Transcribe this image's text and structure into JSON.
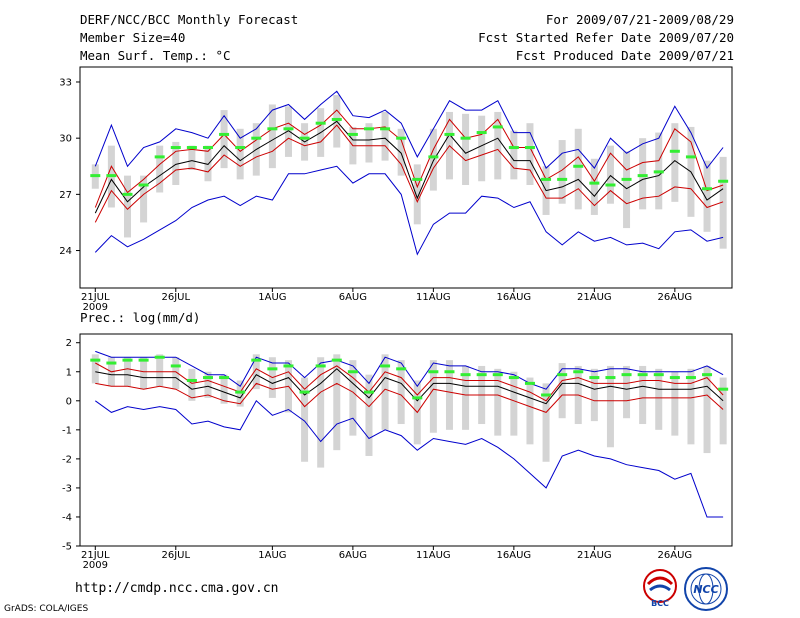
{
  "header": {
    "title": "DERF/NCC/BCC Monthly Forecast",
    "member_size": "Member Size=40",
    "variable": "Mean Surf. Temp.: °C",
    "period": "For 2009/07/21-2009/08/29",
    "fcst_started": "Fcst Started Refer Date 2009/07/20",
    "fcst_produced": "Fcst Produced Date 2009/07/21"
  },
  "footer": {
    "url": "http://cmdp.ncc.cma.gov.cn",
    "grads": "GrADS: COLA/IGES",
    "logo1_text": "BCC",
    "logo2_text": "NCC"
  },
  "colors": {
    "bar": "#d4d4d4",
    "mean": "#000000",
    "minmax": "#0000cc",
    "spread": "#cc0000",
    "marker": "#33ee33"
  },
  "chart_data": [
    {
      "type": "line",
      "title": "Mean Surf. Temp.: °C",
      "x_tick_labels": [
        "21JUL",
        "26JUL",
        "1AUG",
        "6AUG",
        "11AUG",
        "16AUG",
        "21AUG",
        "26AUG"
      ],
      "x_tick_days": [
        1,
        6,
        12,
        17,
        22,
        27,
        32,
        37
      ],
      "x_sublabel": "2009",
      "ylim": [
        22.0,
        33.8
      ],
      "y_ticks": [
        24,
        27,
        30,
        33
      ],
      "days": 40,
      "series": [
        {
          "name": "max",
          "values": [
            28.5,
            30.7,
            28.5,
            29.5,
            29.8,
            30.5,
            30.3,
            30.0,
            31.2,
            30.0,
            30.5,
            31.5,
            31.8,
            31.0,
            31.8,
            32.5,
            31.2,
            31.1,
            31.5,
            30.8,
            29.0,
            30.5,
            32.0,
            31.5,
            31.5,
            32.0,
            30.3,
            30.3,
            28.4,
            29.2,
            29.4,
            28.4,
            30.0,
            29.2,
            29.7,
            30.0,
            31.7,
            30.3,
            28.4,
            29.5
          ]
        },
        {
          "name": "upper",
          "values": [
            26.3,
            28.5,
            27.1,
            27.8,
            28.6,
            29.3,
            29.4,
            29.3,
            30.2,
            29.3,
            29.9,
            30.5,
            30.8,
            30.2,
            30.7,
            31.5,
            30.5,
            30.5,
            30.6,
            29.9,
            27.4,
            29.4,
            31.0,
            30.0,
            30.2,
            31.0,
            29.5,
            29.5,
            27.8,
            28.3,
            29.0,
            27.7,
            29.2,
            28.3,
            28.7,
            28.8,
            30.5,
            29.8,
            27.2,
            27.5
          ]
        },
        {
          "name": "mean",
          "values": [
            26.0,
            27.8,
            26.6,
            27.4,
            28.0,
            28.6,
            28.8,
            28.6,
            29.6,
            28.8,
            29.4,
            29.9,
            30.4,
            29.8,
            30.3,
            30.9,
            29.9,
            29.9,
            30.0,
            29.2,
            26.8,
            28.8,
            30.2,
            29.2,
            29.6,
            30.0,
            28.8,
            28.8,
            27.2,
            27.4,
            27.8,
            26.9,
            28.0,
            27.3,
            27.8,
            28.0,
            28.8,
            28.2,
            26.7,
            27.3
          ]
        },
        {
          "name": "lower",
          "values": [
            25.5,
            27.2,
            26.2,
            27.0,
            27.6,
            28.3,
            28.4,
            28.2,
            29.1,
            28.5,
            29.0,
            29.3,
            30.0,
            29.6,
            29.8,
            30.7,
            29.6,
            29.6,
            29.6,
            28.6,
            26.6,
            28.4,
            29.6,
            28.8,
            29.1,
            29.4,
            28.4,
            28.3,
            26.8,
            26.8,
            27.3,
            26.4,
            27.2,
            26.5,
            26.8,
            26.9,
            27.4,
            27.3,
            26.3,
            26.6
          ]
        },
        {
          "name": "min",
          "values": [
            23.9,
            24.8,
            24.2,
            24.6,
            25.1,
            25.6,
            26.3,
            26.7,
            26.9,
            26.4,
            26.9,
            26.7,
            28.1,
            28.1,
            28.3,
            28.5,
            27.6,
            28.1,
            28.1,
            27.0,
            23.8,
            25.4,
            26.0,
            26.0,
            26.9,
            26.8,
            26.3,
            26.6,
            25.0,
            24.3,
            25.0,
            24.5,
            24.7,
            24.3,
            24.4,
            24.1,
            25.0,
            25.1,
            24.5,
            24.7
          ]
        },
        {
          "name": "bar_high",
          "values": [
            28.6,
            29.6,
            28.0,
            28.0,
            29.6,
            29.8,
            29.6,
            29.6,
            31.5,
            30.5,
            30.8,
            31.8,
            31.7,
            30.8,
            31.6,
            32.3,
            30.6,
            30.8,
            31.4,
            30.5,
            28.6,
            30.5,
            31.4,
            31.3,
            31.2,
            31.4,
            30.4,
            30.8,
            28.5,
            29.9,
            30.5,
            28.9,
            29.6,
            29.3,
            30.0,
            30.3,
            30.8,
            30.6,
            28.8,
            29.0
          ]
        },
        {
          "name": "bar_low",
          "values": [
            27.3,
            26.3,
            24.7,
            25.5,
            27.1,
            27.5,
            28.3,
            27.7,
            28.4,
            27.8,
            28.0,
            28.4,
            29.0,
            28.8,
            29.0,
            29.5,
            28.6,
            28.7,
            28.8,
            28.0,
            25.4,
            27.2,
            27.8,
            27.5,
            27.7,
            27.8,
            27.8,
            27.5,
            25.9,
            26.5,
            26.2,
            25.9,
            26.5,
            25.2,
            26.2,
            26.2,
            26.6,
            25.8,
            25.0,
            24.1
          ]
        },
        {
          "name": "control",
          "values": [
            28.0,
            28.0,
            27.0,
            27.5,
            29.0,
            29.5,
            29.5,
            29.5,
            30.2,
            29.5,
            30.0,
            30.5,
            30.5,
            30.0,
            30.8,
            31.0,
            30.2,
            30.5,
            30.5,
            30.0,
            27.8,
            29.0,
            30.2,
            30.0,
            30.3,
            30.6,
            29.5,
            29.5,
            27.8,
            27.8,
            28.5,
            27.6,
            27.5,
            27.8,
            28.0,
            28.2,
            29.3,
            29.0,
            27.3,
            27.7
          ]
        }
      ]
    },
    {
      "type": "line",
      "title": "Prec.: log(mm/d)",
      "x_tick_labels": [
        "21JUL",
        "26JUL",
        "1AUG",
        "6AUG",
        "11AUG",
        "16AUG",
        "21AUG",
        "26AUG"
      ],
      "x_tick_days": [
        1,
        6,
        12,
        17,
        22,
        27,
        32,
        37
      ],
      "x_sublabel": "2009",
      "ylim": [
        -5,
        2.3
      ],
      "y_ticks": [
        -5,
        -4,
        -3,
        -2,
        -1,
        0,
        1,
        2
      ],
      "days": 40,
      "series": [
        {
          "name": "max",
          "values": [
            1.7,
            1.5,
            1.5,
            1.5,
            1.5,
            1.5,
            1.2,
            0.9,
            0.9,
            0.5,
            1.5,
            1.3,
            1.3,
            0.8,
            1.3,
            1.4,
            1.2,
            0.6,
            1.5,
            1.3,
            0.5,
            1.3,
            1.2,
            1.2,
            1.0,
            1.0,
            0.9,
            0.6,
            0.4,
            1.1,
            1.1,
            1.0,
            1.1,
            1.1,
            1.0,
            1.0,
            1.0,
            1.0,
            1.2,
            0.9
          ]
        },
        {
          "name": "upper",
          "values": [
            1.3,
            1.0,
            1.1,
            1.0,
            1.0,
            1.0,
            0.6,
            0.7,
            0.5,
            0.3,
            1.1,
            0.8,
            1.0,
            0.4,
            0.9,
            1.2,
            0.8,
            0.3,
            1.0,
            0.8,
            0.2,
            0.8,
            0.8,
            0.7,
            0.7,
            0.7,
            0.5,
            0.3,
            0.0,
            0.7,
            0.8,
            0.6,
            0.6,
            0.6,
            0.7,
            0.7,
            0.6,
            0.6,
            0.8,
            0.2
          ]
        },
        {
          "name": "mean",
          "values": [
            1.0,
            0.9,
            0.9,
            0.8,
            0.8,
            0.8,
            0.4,
            0.5,
            0.3,
            0.1,
            0.9,
            0.6,
            0.8,
            0.2,
            0.6,
            1.1,
            0.6,
            0.1,
            0.8,
            0.6,
            0.0,
            0.6,
            0.6,
            0.5,
            0.5,
            0.5,
            0.3,
            0.1,
            -0.1,
            0.6,
            0.6,
            0.4,
            0.5,
            0.4,
            0.5,
            0.4,
            0.4,
            0.4,
            0.5,
            0.0
          ]
        },
        {
          "name": "lower",
          "values": [
            0.6,
            0.5,
            0.5,
            0.4,
            0.5,
            0.4,
            0.1,
            0.2,
            0.0,
            -0.1,
            0.6,
            0.4,
            0.5,
            -0.2,
            0.3,
            0.6,
            0.3,
            -0.2,
            0.4,
            0.2,
            -0.4,
            0.4,
            0.3,
            0.2,
            0.2,
            0.2,
            0.0,
            -0.2,
            -0.4,
            0.2,
            0.2,
            0.0,
            0.0,
            0.0,
            0.1,
            0.1,
            0.1,
            0.1,
            0.2,
            -0.3
          ]
        },
        {
          "name": "min",
          "values": [
            0.0,
            -0.4,
            -0.2,
            -0.3,
            -0.2,
            -0.3,
            -0.8,
            -0.7,
            -0.9,
            -1.0,
            0.0,
            -0.5,
            -0.3,
            -0.7,
            -1.4,
            -0.8,
            -0.6,
            -1.3,
            -1.0,
            -1.2,
            -1.7,
            -1.3,
            -1.4,
            -1.5,
            -1.3,
            -1.6,
            -2.0,
            -2.5,
            -3.0,
            -1.9,
            -1.7,
            -1.9,
            -2.0,
            -2.2,
            -2.3,
            -2.4,
            -2.7,
            -2.5,
            -4.0,
            -4.0
          ]
        },
        {
          "name": "bar_high",
          "values": [
            1.6,
            1.5,
            1.5,
            1.5,
            1.6,
            1.5,
            1.1,
            1.0,
            0.9,
            0.7,
            1.6,
            1.5,
            1.4,
            0.8,
            1.5,
            1.6,
            1.4,
            0.9,
            1.6,
            1.4,
            0.7,
            1.4,
            1.4,
            1.2,
            1.2,
            1.1,
            1.0,
            0.8,
            0.6,
            1.3,
            1.2,
            1.1,
            1.2,
            1.2,
            1.2,
            1.1,
            1.0,
            1.1,
            1.2,
            0.8
          ]
        },
        {
          "name": "bar_low",
          "values": [
            0.6,
            0.5,
            0.5,
            0.4,
            0.5,
            0.4,
            0.0,
            0.1,
            -0.1,
            -0.2,
            0.4,
            0.1,
            -0.4,
            -2.1,
            -2.3,
            -1.7,
            -1.2,
            -1.9,
            -1.0,
            -0.8,
            -1.5,
            -1.1,
            -1.0,
            -1.0,
            -0.8,
            -1.2,
            -1.2,
            -1.5,
            -2.1,
            -0.6,
            -0.8,
            -0.7,
            -1.6,
            -0.6,
            -0.8,
            -1.0,
            -1.2,
            -1.5,
            -1.8,
            -1.5
          ]
        },
        {
          "name": "control",
          "values": [
            1.4,
            1.3,
            1.4,
            1.4,
            1.5,
            1.2,
            0.7,
            0.8,
            0.8,
            0.3,
            1.4,
            1.1,
            1.2,
            0.3,
            1.2,
            1.4,
            1.0,
            0.3,
            1.2,
            1.1,
            0.1,
            1.0,
            1.0,
            0.9,
            0.9,
            0.9,
            0.8,
            0.6,
            0.2,
            0.9,
            1.0,
            0.8,
            0.8,
            0.9,
            0.9,
            0.9,
            0.8,
            0.8,
            0.9,
            0.4
          ]
        }
      ]
    }
  ]
}
